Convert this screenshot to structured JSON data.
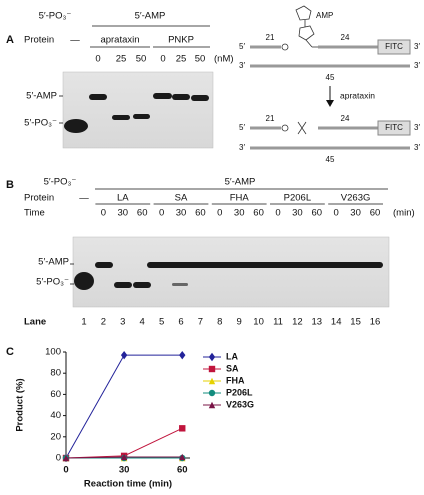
{
  "panel_a": {
    "label": "A",
    "top_left": "5′-PO₃⁻",
    "top_right": "5′-AMP",
    "protein_label": "Protein",
    "dash": "—",
    "groups": [
      "aprataxin",
      "PNKP"
    ],
    "concentrations": [
      "0",
      "25",
      "50",
      "0",
      "25",
      "50"
    ],
    "unit": "(nM)",
    "band_labels": [
      "5′-AMP",
      "5′-PO₃⁻"
    ],
    "diagram": {
      "amp": "AMP",
      "five": "5′",
      "n21": "21",
      "n24": "24",
      "fitc": "FITC",
      "three": "3′",
      "n45": "45",
      "enzyme": "aprataxin"
    }
  },
  "panel_b": {
    "label": "B",
    "top_left": "5′-PO₃⁻",
    "top_right": "5′-AMP",
    "protein_label": "Protein",
    "dash": "—",
    "groups": [
      "LA",
      "SA",
      "FHA",
      "P206L",
      "V263G"
    ],
    "time_label": "Time",
    "times": [
      "0",
      "30",
      "60"
    ],
    "unit": "(min)",
    "band_labels": [
      "5′-AMP",
      "5′-PO₃⁻"
    ],
    "lane_label": "Lane",
    "lanes": [
      "1",
      "2",
      "3",
      "4",
      "5",
      "6",
      "7",
      "8",
      "9",
      "10",
      "11",
      "12",
      "13",
      "14",
      "15",
      "16"
    ]
  },
  "chart_data": {
    "type": "line",
    "label": "C",
    "x_label": "Reaction time (min)",
    "y_label": "Product (%)",
    "x": [
      0,
      30,
      60
    ],
    "xlim": [
      0,
      64
    ],
    "xticks": [
      0,
      30,
      60
    ],
    "ylim": [
      0,
      100
    ],
    "yticks": [
      0,
      20,
      40,
      60,
      80,
      100
    ],
    "legend": "right",
    "series": [
      {
        "name": "LA",
        "color": "#23239a",
        "marker": "diamond",
        "values": [
          0,
          97,
          97
        ]
      },
      {
        "name": "SA",
        "color": "#c0143c",
        "marker": "square",
        "values": [
          0,
          2,
          28
        ]
      },
      {
        "name": "FHA",
        "color": "#e6d200",
        "marker": "triangle",
        "values": [
          0,
          0,
          0
        ]
      },
      {
        "name": "P206L",
        "color": "#128c7e",
        "marker": "circle",
        "values": [
          0,
          0,
          0
        ]
      },
      {
        "name": "V263G",
        "color": "#7a1446",
        "marker": "triangle",
        "values": [
          0,
          1,
          1
        ]
      }
    ]
  }
}
